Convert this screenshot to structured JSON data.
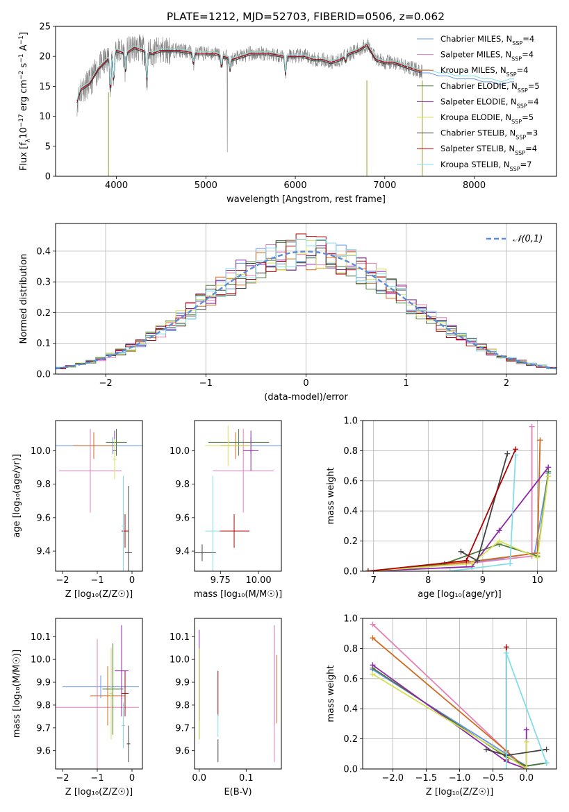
{
  "title": "PLATE=1212, MJD=52703, FIBERID=0506, z=0.062",
  "models": [
    {
      "name": "Chabrier MILES",
      "nssp": "4",
      "color": "#6495ed"
    },
    {
      "name": "Salpeter MILES",
      "nssp": "4",
      "color": "#e67eb5"
    },
    {
      "name": "Kroupa MILES",
      "nssp": "4",
      "color": "#d2691e"
    },
    {
      "name": "Chabrier ELODIE",
      "nssp": "5",
      "color": "#4b7a3a"
    },
    {
      "name": "Salpeter ELODIE",
      "nssp": "4",
      "color": "#8e24aa"
    },
    {
      "name": "Kroupa ELODIE",
      "nssp": "5",
      "color": "#d4e157"
    },
    {
      "name": "Chabrier STELIB",
      "nssp": "3",
      "color": "#404040"
    },
    {
      "name": "Salpeter STELIB",
      "nssp": "4",
      "color": "#b00000"
    },
    {
      "name": "Kroupa STELIB",
      "nssp": "7",
      "color": "#80deea"
    }
  ],
  "chart_data": [
    {
      "id": "spectrum",
      "type": "line",
      "title": "PLATE=1212, MJD=52703, FIBERID=0506, z=0.062",
      "xlabel": "wavelength [Angstrom, rest frame]",
      "ylabel_parts": [
        "Flux [f",
        "λ",
        "10",
        "−17",
        " erg cm",
        "−2",
        " s",
        "−1",
        " A",
        "−1",
        "]"
      ],
      "xlim": [
        3320,
        8920
      ],
      "ylim": [
        0,
        25
      ],
      "xticks": [
        4000,
        5000,
        6000,
        7000,
        8000
      ],
      "yticks": [
        0,
        5,
        10,
        15,
        20,
        25
      ],
      "legend_position": "right",
      "continuum_x": [
        3560,
        3600,
        3700,
        3800,
        3900,
        4000,
        4100,
        4200,
        4300,
        4400,
        4500,
        4700,
        4900,
        5100,
        5300,
        5500,
        5700,
        5900,
        6100,
        6200,
        6300,
        6400,
        6500,
        6600,
        6700,
        6800,
        6900,
        7000,
        7100,
        7200,
        7300,
        7400,
        7500,
        7600,
        7700,
        7800,
        7900,
        8000,
        8100,
        8200,
        8300,
        8400,
        8450
      ],
      "continuum_y": [
        12.5,
        14.5,
        15.5,
        18.0,
        19.5,
        21.0,
        20.5,
        21.5,
        21.0,
        20.5,
        21.0,
        21.0,
        20.5,
        20.5,
        19.5,
        20.5,
        20.5,
        20.0,
        20.0,
        19.5,
        19.5,
        19.0,
        19.5,
        20.5,
        21.0,
        22.0,
        19.5,
        19.0,
        19.0,
        18.5,
        18.0,
        17.5,
        17.5,
        17.0,
        17.0,
        16.5,
        16.5,
        16.5,
        16.0,
        16.0,
        15.5,
        16.0,
        16.0
      ]
    },
    {
      "id": "residuals",
      "type": "histogram",
      "xlabel": "(data-model)/error",
      "ylabel": "Normed distribution",
      "xlim": [
        -2.5,
        2.5
      ],
      "ylim": [
        0,
        0.49
      ],
      "xticks": [
        -2,
        -1,
        0,
        1,
        2
      ],
      "yticks": [
        0.0,
        0.1,
        0.2,
        0.3,
        0.4
      ],
      "legend": "𝒩(0,1)",
      "legend_position": "top-right",
      "bin_width": 0.1,
      "bin_start": -2.5,
      "reference_curve": "normal(0,1)"
    },
    {
      "id": "age-vs-Z",
      "type": "errorbar",
      "xlabel": "Z [log₁₀(Z/Z☉)]",
      "ylabel": "age  [log₁₀(age/yr)]",
      "xlim": [
        -2.2,
        0.3
      ],
      "ylim": [
        9.28,
        10.18
      ],
      "xticks": [
        -2,
        -1,
        0
      ],
      "yticks": [
        9.4,
        9.6,
        9.8,
        10.0
      ],
      "points": [
        {
          "x": -0.55,
          "y": 10.03,
          "xerr": 2.0,
          "yerr": 0.05
        },
        {
          "x": -1.2,
          "y": 9.88,
          "xerr": 0.9,
          "yerr": 0.25
        },
        {
          "x": -1.1,
          "y": 10.03,
          "xerr": 0.6,
          "yerr": 0.08
        },
        {
          "x": -0.45,
          "y": 10.05,
          "xerr": 0.3,
          "yerr": 0.08
        },
        {
          "x": -0.5,
          "y": 10.0,
          "xerr": 0.05,
          "yerr": 0.12
        },
        {
          "x": -0.5,
          "y": 9.95,
          "xerr": 0.05,
          "yerr": 0.12
        },
        {
          "x": -0.1,
          "y": 9.39,
          "xerr": 0.1,
          "yerr": 0.4
        },
        {
          "x": -0.2,
          "y": 9.52,
          "xerr": 0.1,
          "yerr": 0.1
        },
        {
          "x": -0.25,
          "y": 9.55,
          "xerr": 0.05,
          "yerr": 0.3
        }
      ]
    },
    {
      "id": "age-vs-mass",
      "type": "errorbar",
      "xlabel": "mass [log₁₀(M/M☉)]",
      "xlim": [
        9.58,
        10.15
      ],
      "ylim": [
        9.28,
        10.18
      ],
      "xticks": [
        9.75,
        10.0
      ],
      "yticks": [
        9.4,
        9.6,
        9.8,
        10.0
      ],
      "points": [
        {
          "x": 9.95,
          "y": 10.03,
          "xerr": 0.2,
          "yerr": 0.05
        },
        {
          "x": 9.9,
          "y": 9.88,
          "xerr": 0.2,
          "yerr": 0.25
        },
        {
          "x": 9.85,
          "y": 10.03,
          "xerr": 0.1,
          "yerr": 0.08
        },
        {
          "x": 9.87,
          "y": 10.05,
          "xerr": 0.2,
          "yerr": 0.08
        },
        {
          "x": 9.95,
          "y": 10.0,
          "xerr": 0.05,
          "yerr": 0.12
        },
        {
          "x": 9.8,
          "y": 10.03,
          "xerr": 0.15,
          "yerr": 0.12
        },
        {
          "x": 9.63,
          "y": 9.39,
          "xerr": 0.09,
          "yerr": 0.05
        },
        {
          "x": 9.84,
          "y": 9.52,
          "xerr": 0.1,
          "yerr": 0.1
        },
        {
          "x": 9.7,
          "y": 9.52,
          "xerr": 0.05,
          "yerr": 0.33
        }
      ]
    },
    {
      "id": "massweight-vs-age",
      "type": "line",
      "xlabel": "age  [log₁₀(age/yr)]",
      "ylabel": "mass weight",
      "xlim": [
        6.8,
        10.35
      ],
      "ylim": [
        0,
        1.0
      ],
      "xticks": [
        7,
        8,
        9,
        10
      ],
      "yticks": [
        0.0,
        0.2,
        0.4,
        0.6,
        0.8,
        1.0
      ],
      "series": [
        {
          "x": [
            6.9,
            8.7,
            9.95,
            10.2
          ],
          "y": [
            0.0,
            0.05,
            0.12,
            0.65
          ]
        },
        {
          "x": [
            6.9,
            8.7,
            9.9,
            9.9
          ],
          "y": [
            0.0,
            0.05,
            0.1,
            0.96
          ]
        },
        {
          "x": [
            6.9,
            8.7,
            10.0,
            10.05
          ],
          "y": [
            0.0,
            0.06,
            0.12,
            0.87
          ]
        },
        {
          "x": [
            6.9,
            8.3,
            9.3,
            10.0,
            10.2
          ],
          "y": [
            0.0,
            0.05,
            0.18,
            0.1,
            0.66
          ]
        },
        {
          "x": [
            6.9,
            8.8,
            9.3,
            10.2
          ],
          "y": [
            0.0,
            0.03,
            0.27,
            0.69
          ]
        },
        {
          "x": [
            6.9,
            8.8,
            9.3,
            10.0,
            10.2
          ],
          "y": [
            0.0,
            0.05,
            0.2,
            0.09,
            0.63
          ]
        },
        {
          "x": [
            8.6,
            8.9,
            9.45
          ],
          "y": [
            0.13,
            0.07,
            0.78
          ]
        },
        {
          "x": [
            6.9,
            8.7,
            9.6
          ],
          "y": [
            0.0,
            0.07,
            0.81
          ]
        },
        {
          "x": [
            8.4,
            9.5,
            9.5,
            9.6
          ],
          "y": [
            0.0,
            0.05,
            0.05,
            0.77
          ]
        }
      ]
    },
    {
      "id": "mass-vs-Z",
      "type": "errorbar",
      "xlabel": "Z [log₁₀(Z/Z☉)]",
      "ylabel": "mass [log₁₀(M/M☉)]",
      "xlim": [
        -2.2,
        0.3
      ],
      "ylim": [
        9.52,
        10.18
      ],
      "xticks": [
        -2,
        -1,
        0
      ],
      "yticks": [
        9.6,
        9.7,
        9.8,
        9.9,
        10.0,
        10.1
      ],
      "points": [
        {
          "x": -0.9,
          "y": 9.88,
          "xerr": 1.1,
          "yerr": 0.05
        },
        {
          "x": -1.0,
          "y": 9.79,
          "xerr": 1.2,
          "yerr": 0.3
        },
        {
          "x": -0.7,
          "y": 9.84,
          "xerr": 0.5,
          "yerr": 0.13
        },
        {
          "x": -0.55,
          "y": 9.87,
          "xerr": 0.3,
          "yerr": 0.2
        },
        {
          "x": -0.3,
          "y": 9.95,
          "xerr": 0.2,
          "yerr": 0.2
        },
        {
          "x": -0.6,
          "y": 9.85,
          "xerr": 0.05,
          "yerr": 0.2
        },
        {
          "x": -0.1,
          "y": 9.63,
          "xerr": 0.05,
          "yerr": 0.08
        },
        {
          "x": -0.2,
          "y": 9.85,
          "xerr": 0.1,
          "yerr": 0.1
        },
        {
          "x": -0.25,
          "y": 9.71,
          "xerr": 0.05,
          "yerr": 0.1
        }
      ]
    },
    {
      "id": "mass-vs-EBV",
      "type": "errorbar",
      "xlabel": "E(B-V)",
      "xlim": [
        -0.01,
        0.175
      ],
      "ylim": [
        9.52,
        10.18
      ],
      "xticks": [
        0.0,
        0.1
      ],
      "xtick_labels": [
        "0.0",
        "0.1"
      ],
      "yticks": [
        9.6,
        9.7,
        9.8,
        9.9,
        10.0,
        10.1
      ],
      "points": [
        {
          "x": 0.16,
          "y": 9.93,
          "yerr": 0.22
        },
        {
          "x": 0.16,
          "y": 9.85,
          "yerr": 0.3
        },
        {
          "x": 0.165,
          "y": 9.87,
          "yerr": 0.15
        },
        {
          "x": 0.0,
          "y": 9.85,
          "yerr": 0.2
        },
        {
          "x": 0.0,
          "y": 9.93,
          "yerr": 0.2
        },
        {
          "x": 0.0,
          "y": 9.85,
          "yerr": 0.2
        },
        {
          "x": 0.04,
          "y": 9.6,
          "yerr": 0.05
        },
        {
          "x": 0.04,
          "y": 9.85,
          "yerr": 0.1
        },
        {
          "x": 0.04,
          "y": 9.71,
          "yerr": 0.05
        }
      ]
    },
    {
      "id": "massweight-vs-Z",
      "type": "line",
      "xlabel": "Z [log₁₀(Z/Z☉)]",
      "ylabel": "mass weight",
      "xlim": [
        -2.45,
        0.45
      ],
      "ylim": [
        0,
        1.0
      ],
      "xticks": [
        -2.0,
        -1.5,
        -1.0,
        -0.5,
        0.0
      ],
      "xtick_labels": [
        "−2.0",
        "−1.5",
        "−1.0",
        "−0.5",
        "0.0"
      ],
      "yticks": [
        0.0,
        0.2,
        0.4,
        0.6,
        0.8,
        1.0
      ],
      "series": [
        {
          "x": [
            -2.3,
            -0.3,
            0.0,
            0.3
          ],
          "y": [
            0.66,
            0.1,
            0.02,
            0.04
          ]
        },
        {
          "x": [
            -2.3,
            -0.3,
            0.0
          ],
          "y": [
            0.96,
            0.12,
            0.0
          ]
        },
        {
          "x": [
            -2.3,
            -0.3,
            0.0
          ],
          "y": [
            0.87,
            0.12,
            0.0
          ]
        },
        {
          "x": [
            -2.3,
            -0.3,
            0.0,
            0.3
          ],
          "y": [
            0.67,
            0.08,
            0.02,
            0.04
          ]
        },
        {
          "x": [
            -2.3,
            -0.3,
            0.0,
            0.0
          ],
          "y": [
            0.69,
            0.05,
            0.0,
            0.26
          ]
        },
        {
          "x": [
            -2.3,
            -0.3,
            0.0,
            0.0
          ],
          "y": [
            0.63,
            0.09,
            0.0,
            0.18
          ]
        },
        {
          "x": [
            -0.6,
            -0.3,
            0.3
          ],
          "y": [
            0.13,
            0.09,
            0.13
          ]
        },
        {
          "x": [
            -0.3,
            -0.3
          ],
          "y": [
            0.06,
            0.81
          ]
        },
        {
          "x": [
            -0.3,
            -0.3,
            0.3
          ],
          "y": [
            0.0,
            0.77,
            0.04
          ]
        }
      ]
    }
  ]
}
